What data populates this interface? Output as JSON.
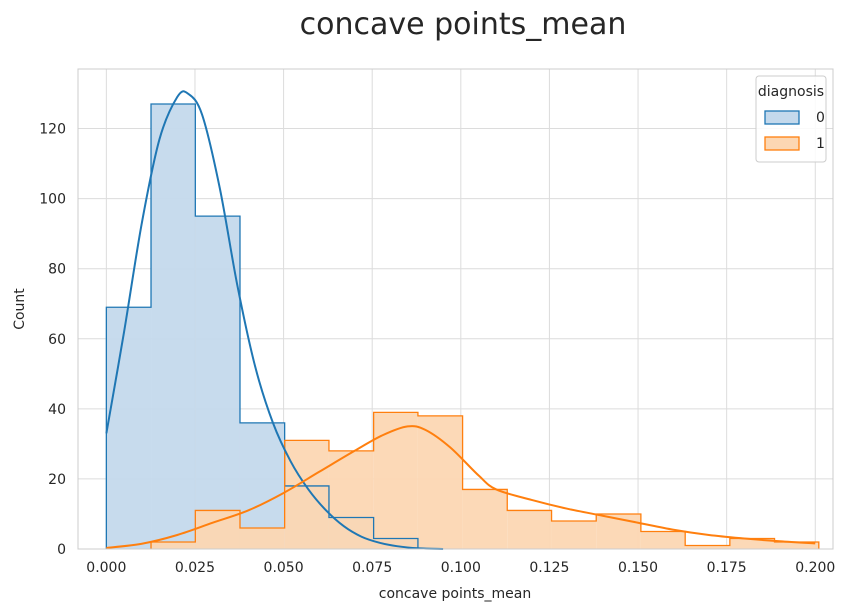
{
  "chart_data": {
    "type": "histogram",
    "title": "concave points_mean",
    "xlabel": "concave points_mean",
    "ylabel": "Count",
    "xlim": [
      -0.008,
      0.205
    ],
    "ylim": [
      0,
      137
    ],
    "xticks": [
      "0.000",
      "0.025",
      "0.050",
      "0.075",
      "0.100",
      "0.125",
      "0.150",
      "0.175",
      "0.200"
    ],
    "xtick_values": [
      0.0,
      0.025,
      0.05,
      0.075,
      0.1,
      0.125,
      0.15,
      0.175,
      0.2
    ],
    "yticks": [
      "0",
      "20",
      "40",
      "60",
      "80",
      "100",
      "120"
    ],
    "ytick_values": [
      0,
      20,
      40,
      60,
      80,
      100,
      120
    ],
    "grid": true,
    "legend": {
      "title": "diagnosis",
      "position": "top-right"
    },
    "bin_edges": [
      0.0,
      0.0126,
      0.0251,
      0.0377,
      0.0503,
      0.0628,
      0.0754,
      0.0879,
      0.1005,
      0.1131,
      0.1256,
      0.1382,
      0.1508,
      0.1633,
      0.1759,
      0.1885,
      0.201
    ],
    "series": [
      {
        "name": "0",
        "color": "#1f77b4",
        "fill": "#c4d9ec",
        "counts": [
          69,
          127,
          95,
          36,
          18,
          9,
          3,
          0,
          0,
          0,
          0,
          0,
          0,
          0,
          0,
          0
        ],
        "kde": [
          [
            0.0,
            33
          ],
          [
            0.005,
            62
          ],
          [
            0.01,
            93
          ],
          [
            0.015,
            117
          ],
          [
            0.02,
            129
          ],
          [
            0.023,
            130
          ],
          [
            0.027,
            124
          ],
          [
            0.032,
            103
          ],
          [
            0.037,
            75
          ],
          [
            0.042,
            52
          ],
          [
            0.047,
            36
          ],
          [
            0.052,
            25
          ],
          [
            0.057,
            17
          ],
          [
            0.062,
            11
          ],
          [
            0.067,
            6.5
          ],
          [
            0.072,
            3.5
          ],
          [
            0.077,
            1.8
          ],
          [
            0.082,
            0.8
          ],
          [
            0.088,
            0.2
          ],
          [
            0.095,
            0
          ]
        ]
      },
      {
        "name": "1",
        "color": "#ff7f0e",
        "fill": "#fcd7b3",
        "counts": [
          0,
          2,
          11,
          6,
          31,
          28,
          39,
          38,
          17,
          11,
          8,
          10,
          5,
          1,
          3,
          2
        ],
        "kde": [
          [
            0.0,
            0.3
          ],
          [
            0.01,
            1.5
          ],
          [
            0.02,
            4
          ],
          [
            0.03,
            7.5
          ],
          [
            0.04,
            11
          ],
          [
            0.05,
            16
          ],
          [
            0.06,
            22
          ],
          [
            0.07,
            28
          ],
          [
            0.078,
            32.5
          ],
          [
            0.085,
            35
          ],
          [
            0.09,
            34
          ],
          [
            0.097,
            29
          ],
          [
            0.105,
            21
          ],
          [
            0.11,
            17
          ],
          [
            0.12,
            14
          ],
          [
            0.13,
            11.5
          ],
          [
            0.14,
            9.5
          ],
          [
            0.15,
            7.5
          ],
          [
            0.16,
            5.5
          ],
          [
            0.17,
            4
          ],
          [
            0.18,
            3
          ],
          [
            0.19,
            2.2
          ],
          [
            0.2,
            1.6
          ]
        ]
      }
    ]
  }
}
